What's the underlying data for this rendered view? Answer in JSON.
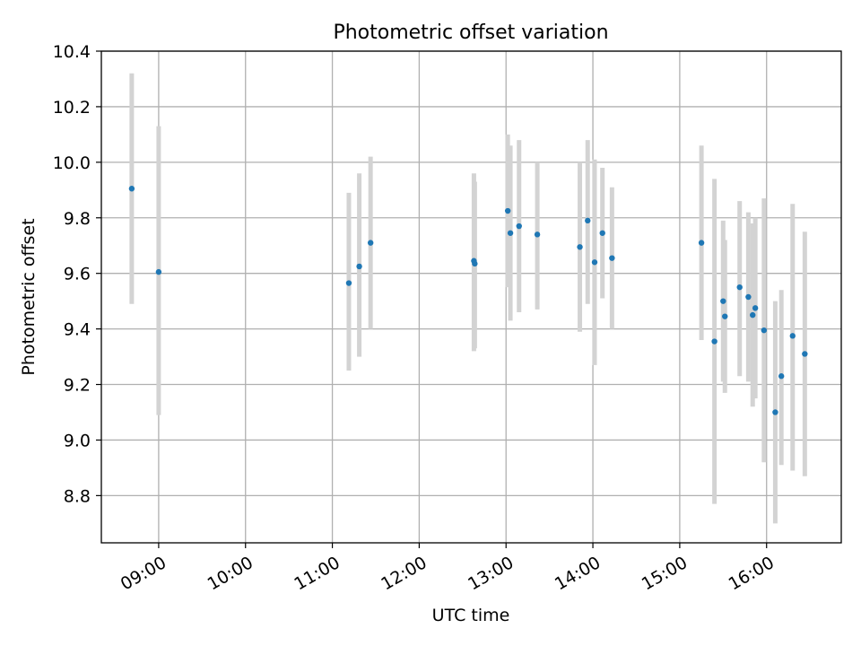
{
  "chart_data": {
    "type": "scatter",
    "title": "Photometric offset variation",
    "xlabel": "UTC time",
    "ylabel": "Photometric offset",
    "x_unit": "hours UTC",
    "xlim": [
      8.34,
      16.86
    ],
    "ylim": [
      8.63,
      10.4
    ],
    "grid": true,
    "x_ticks": [
      {
        "value": 9,
        "label": "09:00"
      },
      {
        "value": 10,
        "label": "10:00"
      },
      {
        "value": 11,
        "label": "11:00"
      },
      {
        "value": 12,
        "label": "12:00"
      },
      {
        "value": 13,
        "label": "13:00"
      },
      {
        "value": 14,
        "label": "14:00"
      },
      {
        "value": 15,
        "label": "15:00"
      },
      {
        "value": 16,
        "label": "16:00"
      }
    ],
    "y_ticks": [
      {
        "value": 8.8,
        "label": "8.8"
      },
      {
        "value": 9.0,
        "label": "9.0"
      },
      {
        "value": 9.2,
        "label": "9.2"
      },
      {
        "value": 9.4,
        "label": "9.4"
      },
      {
        "value": 9.6,
        "label": "9.6"
      },
      {
        "value": 9.8,
        "label": "9.8"
      },
      {
        "value": 10.0,
        "label": "10.0"
      },
      {
        "value": 10.2,
        "label": "10.2"
      },
      {
        "value": 10.4,
        "label": "10.4"
      }
    ],
    "series": [
      {
        "name": "Photometric offset",
        "marker_color": "#1f77b4",
        "errorbar_color": "#d3d3d3",
        "points": [
          {
            "x": 8.69,
            "y": 9.905,
            "lo": 9.49,
            "hi": 10.32
          },
          {
            "x": 9.0,
            "y": 9.605,
            "lo": 9.09,
            "hi": 10.13
          },
          {
            "x": 11.19,
            "y": 9.565,
            "lo": 9.25,
            "hi": 9.89
          },
          {
            "x": 11.31,
            "y": 9.625,
            "lo": 9.3,
            "hi": 9.96
          },
          {
            "x": 11.44,
            "y": 9.71,
            "lo": 9.4,
            "hi": 10.02
          },
          {
            "x": 12.63,
            "y": 9.645,
            "lo": 9.32,
            "hi": 9.96
          },
          {
            "x": 12.64,
            "y": 9.635,
            "lo": 9.33,
            "hi": 9.93
          },
          {
            "x": 13.02,
            "y": 9.825,
            "lo": 9.55,
            "hi": 10.1
          },
          {
            "x": 13.05,
            "y": 9.745,
            "lo": 9.43,
            "hi": 10.06
          },
          {
            "x": 13.15,
            "y": 9.77,
            "lo": 9.46,
            "hi": 10.08
          },
          {
            "x": 13.36,
            "y": 9.74,
            "lo": 9.47,
            "hi": 10.0
          },
          {
            "x": 13.85,
            "y": 9.695,
            "lo": 9.39,
            "hi": 10.0
          },
          {
            "x": 13.94,
            "y": 9.79,
            "lo": 9.49,
            "hi": 10.08
          },
          {
            "x": 14.02,
            "y": 9.64,
            "lo": 9.27,
            "hi": 10.01
          },
          {
            "x": 14.11,
            "y": 9.745,
            "lo": 9.51,
            "hi": 9.98
          },
          {
            "x": 14.22,
            "y": 9.655,
            "lo": 9.4,
            "hi": 9.91
          },
          {
            "x": 15.25,
            "y": 9.71,
            "lo": 9.36,
            "hi": 10.06
          },
          {
            "x": 15.4,
            "y": 9.355,
            "lo": 8.77,
            "hi": 9.94
          },
          {
            "x": 15.5,
            "y": 9.5,
            "lo": 9.21,
            "hi": 9.79
          },
          {
            "x": 15.52,
            "y": 9.445,
            "lo": 9.17,
            "hi": 9.72
          },
          {
            "x": 15.69,
            "y": 9.55,
            "lo": 9.23,
            "hi": 9.86
          },
          {
            "x": 15.79,
            "y": 9.515,
            "lo": 9.21,
            "hi": 9.82
          },
          {
            "x": 15.84,
            "y": 9.45,
            "lo": 9.12,
            "hi": 9.78
          },
          {
            "x": 15.87,
            "y": 9.475,
            "lo": 9.15,
            "hi": 9.8
          },
          {
            "x": 15.97,
            "y": 9.395,
            "lo": 8.92,
            "hi": 9.87
          },
          {
            "x": 16.1,
            "y": 9.1,
            "lo": 8.7,
            "hi": 9.5
          },
          {
            "x": 16.17,
            "y": 9.23,
            "lo": 8.91,
            "hi": 9.54
          },
          {
            "x": 16.3,
            "y": 9.375,
            "lo": 8.89,
            "hi": 9.85
          },
          {
            "x": 16.44,
            "y": 9.31,
            "lo": 8.87,
            "hi": 9.75
          }
        ]
      }
    ]
  }
}
